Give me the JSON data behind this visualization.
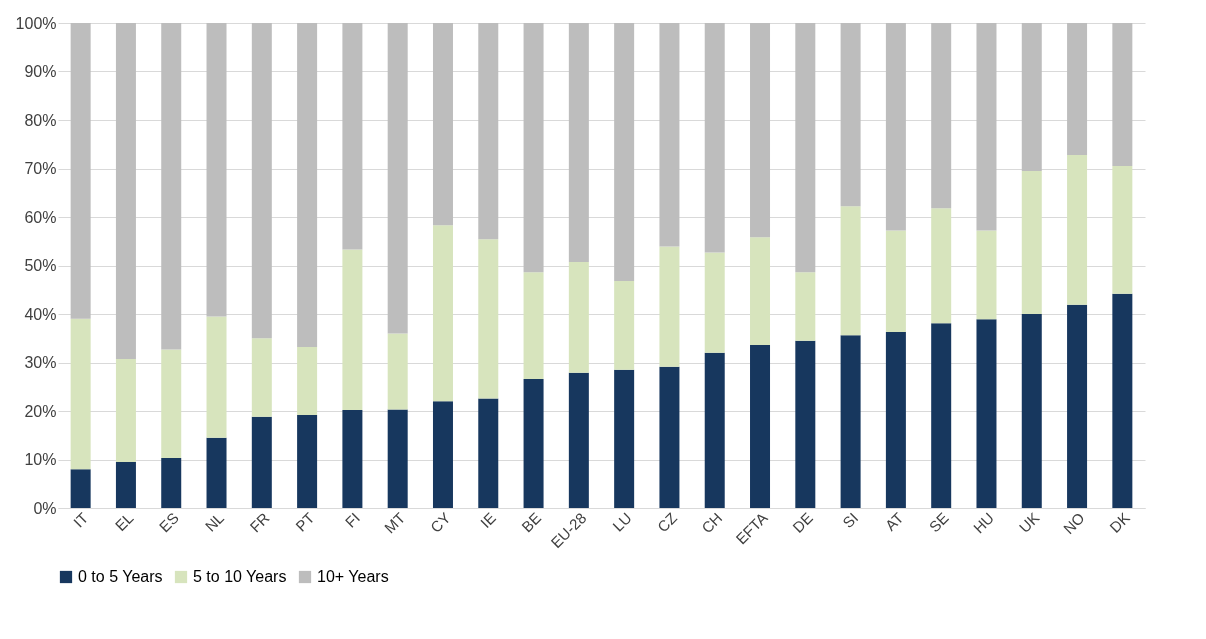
{
  "chart_data": {
    "type": "bar",
    "stacked": true,
    "categories": [
      "IT",
      "EL",
      "ES",
      "NL",
      "FR",
      "PT",
      "FI",
      "MT",
      "CY",
      "IE",
      "BE",
      "EU-28",
      "LU",
      "CZ",
      "CH",
      "EFTA",
      "DE",
      "SI",
      "AT",
      "SE",
      "HU",
      "UK",
      "NO",
      "DK"
    ],
    "series": [
      {
        "name": "0 to 5 Years",
        "color": "#17375e",
        "values": [
          8,
          9.5,
          10.3,
          14.5,
          18.8,
          19.2,
          20.2,
          20.3,
          22,
          22.6,
          26.6,
          27.9,
          28.5,
          29.1,
          32,
          33.6,
          34.5,
          35.6,
          36.3,
          38.1,
          38.9,
          40,
          41.9,
          44.2
        ]
      },
      {
        "name": "5 to 10 Years",
        "color": "#d7e4bd",
        "values": [
          31,
          21.2,
          22.4,
          25,
          16.2,
          14,
          33.1,
          15.7,
          36.3,
          32.8,
          22,
          22.8,
          18.3,
          24.8,
          20.7,
          22.2,
          14.1,
          26.6,
          20.9,
          23.7,
          18.3,
          29.5,
          30.9,
          26.3
        ]
      },
      {
        "name": "10+ Years",
        "color": "#bdbdbd",
        "values": [
          61,
          69.3,
          67.3,
          60.5,
          65,
          66.8,
          46.7,
          64,
          41.7,
          44.6,
          51.4,
          49.3,
          53.2,
          46.1,
          47.3,
          44.2,
          51.4,
          37.8,
          42.8,
          38.2,
          42.8,
          30.5,
          27.2,
          29.5
        ]
      }
    ],
    "ylim": [
      0,
      100
    ],
    "yticks": [
      {
        "value": 0,
        "label": "0%"
      },
      {
        "value": 10,
        "label": "10%"
      },
      {
        "value": 20,
        "label": "20%"
      },
      {
        "value": 30,
        "label": "30%"
      },
      {
        "value": 40,
        "label": "40%"
      },
      {
        "value": 50,
        "label": "50%"
      },
      {
        "value": 60,
        "label": "60%"
      },
      {
        "value": 70,
        "label": "70%"
      },
      {
        "value": 80,
        "label": "80%"
      },
      {
        "value": 90,
        "label": "90%"
      },
      {
        "value": 100,
        "label": "100%"
      }
    ],
    "grid": "y",
    "legend": "bottom"
  }
}
